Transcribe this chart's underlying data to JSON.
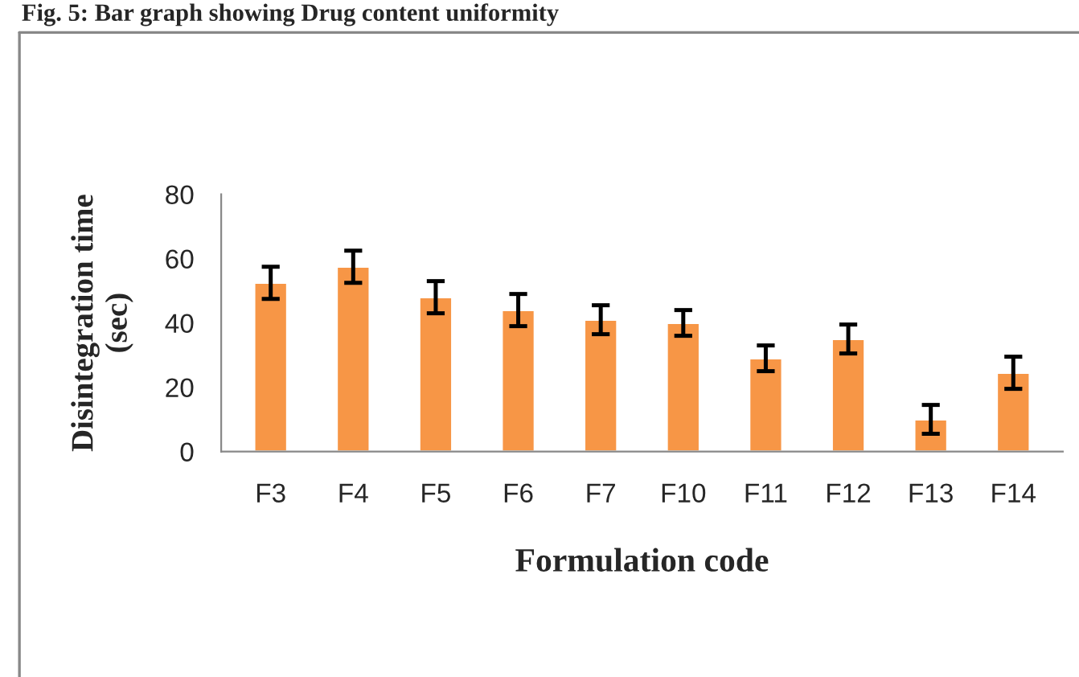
{
  "chart_data": {
    "type": "bar",
    "title": "Fig. 5: Bar graph showing Drug content uniformity",
    "categories": [
      "F3",
      "F4",
      "F5",
      "F6",
      "F7",
      "F10",
      "F11",
      "F12",
      "F13",
      "F14"
    ],
    "values": [
      52.5,
      57.5,
      48,
      44,
      41,
      40,
      29,
      35,
      10,
      24.5
    ],
    "errors": [
      5,
      5,
      5,
      5,
      4.5,
      4,
      4,
      4.5,
      4.5,
      5
    ],
    "color": "#f79646",
    "xlabel": "Formulation code",
    "ylabel": "Disintegration time\n(sec)",
    "ylim": [
      0,
      80
    ],
    "yticks": [
      0,
      20,
      40,
      60,
      80
    ],
    "grid": false
  }
}
